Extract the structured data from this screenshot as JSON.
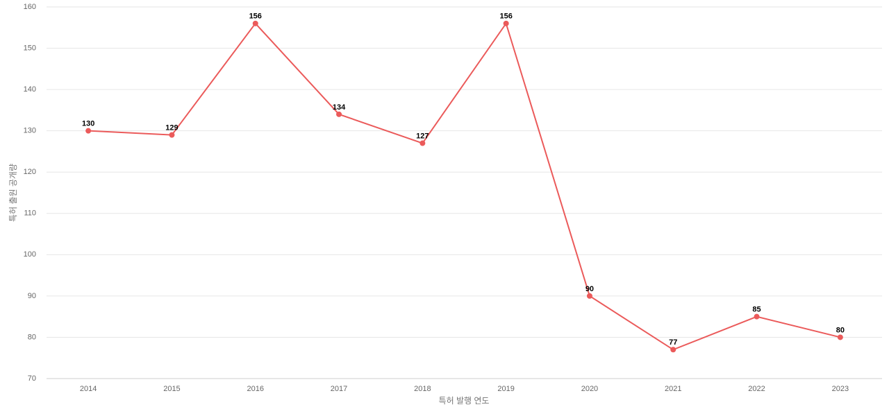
{
  "chart_data": {
    "type": "line",
    "x_label": "특허 발행 연도",
    "y_label": "특허 출원 공개량",
    "categories": [
      "2014",
      "2015",
      "2016",
      "2017",
      "2018",
      "2019",
      "2020",
      "2021",
      "2022",
      "2023"
    ],
    "values": [
      130,
      129,
      156,
      134,
      127,
      156,
      90,
      77,
      85,
      80
    ],
    "color": "#eb5a5a",
    "ylim": [
      70,
      160
    ],
    "yticks": [
      70,
      80,
      90,
      100,
      110,
      120,
      130,
      140,
      150,
      160
    ],
    "grid": true,
    "data_labels": true
  }
}
